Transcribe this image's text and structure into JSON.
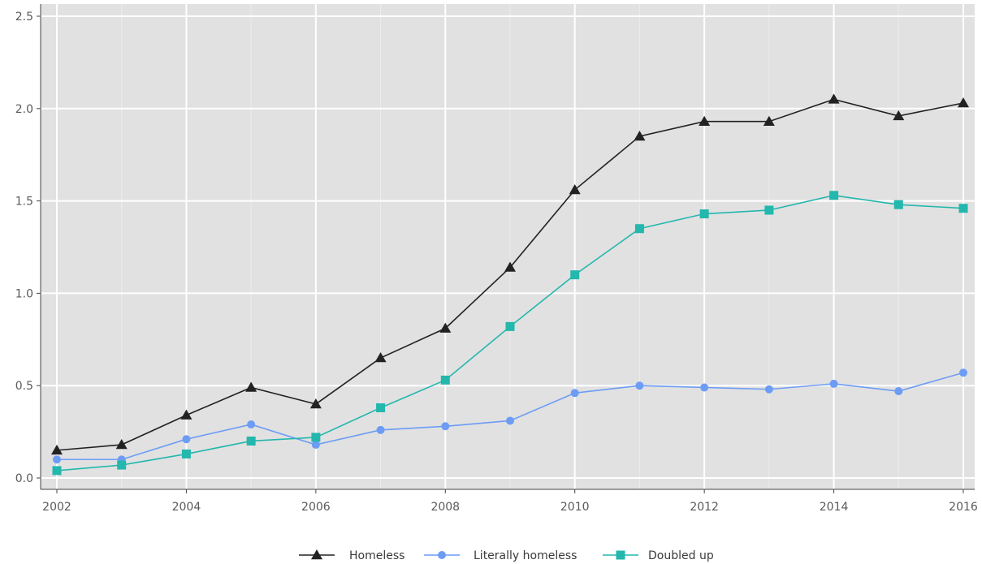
{
  "chart_data": {
    "type": "line",
    "title": "",
    "xlabel": "",
    "ylabel": "",
    "x": [
      2002,
      2003,
      2004,
      2005,
      2006,
      2007,
      2008,
      2009,
      2010,
      2011,
      2012,
      2013,
      2014,
      2015,
      2016
    ],
    "xlim": [
      2002,
      2016
    ],
    "ylim": [
      0,
      2.5
    ],
    "x_ticks": [
      2002,
      2004,
      2006,
      2008,
      2010,
      2012,
      2014,
      2016
    ],
    "x_tick_labels": [
      "2002",
      "2004",
      "2006",
      "2008",
      "2010",
      "2012",
      "2014",
      "2016"
    ],
    "y_ticks": [
      0,
      0.5,
      1,
      1.5,
      2,
      2.5
    ],
    "y_tick_labels": [
      "0.0",
      "0.5",
      "1.0",
      "1.5",
      "2.0",
      "2.5"
    ],
    "grid": true,
    "background": "#e1e1e1",
    "legend_position": "bottom",
    "series": [
      {
        "name": "Homeless",
        "color": "#222222",
        "marker": "triangle",
        "values": [
          0.15,
          0.18,
          0.34,
          0.49,
          0.4,
          0.65,
          0.81,
          1.14,
          1.56,
          1.85,
          1.93,
          1.93,
          2.05,
          1.96,
          2.03
        ]
      },
      {
        "name": "Literally homeless",
        "color": "#6d9cf5",
        "marker": "circle",
        "values": [
          0.1,
          0.1,
          0.21,
          0.29,
          0.18,
          0.26,
          0.28,
          0.31,
          0.46,
          0.5,
          0.49,
          0.48,
          0.51,
          0.47,
          0.57
        ]
      },
      {
        "name": "Doubled up",
        "color": "#23b7ad",
        "marker": "square",
        "values": [
          0.04,
          0.07,
          0.13,
          0.2,
          0.22,
          0.38,
          0.53,
          0.82,
          1.1,
          1.35,
          1.43,
          1.45,
          1.53,
          1.48,
          1.46
        ]
      }
    ]
  }
}
